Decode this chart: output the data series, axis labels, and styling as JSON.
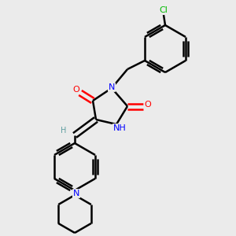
{
  "bg_color": "#ebebeb",
  "atom_color_N": "#0000ff",
  "atom_color_O": "#ff0000",
  "atom_color_Cl": "#00bb00",
  "atom_color_H": "#5f9ea0",
  "bond_color": "#000000",
  "bond_width": 1.8,
  "dbo": 0.035,
  "xlim": [
    0.0,
    3.0
  ],
  "ylim": [
    0.0,
    3.0
  ]
}
